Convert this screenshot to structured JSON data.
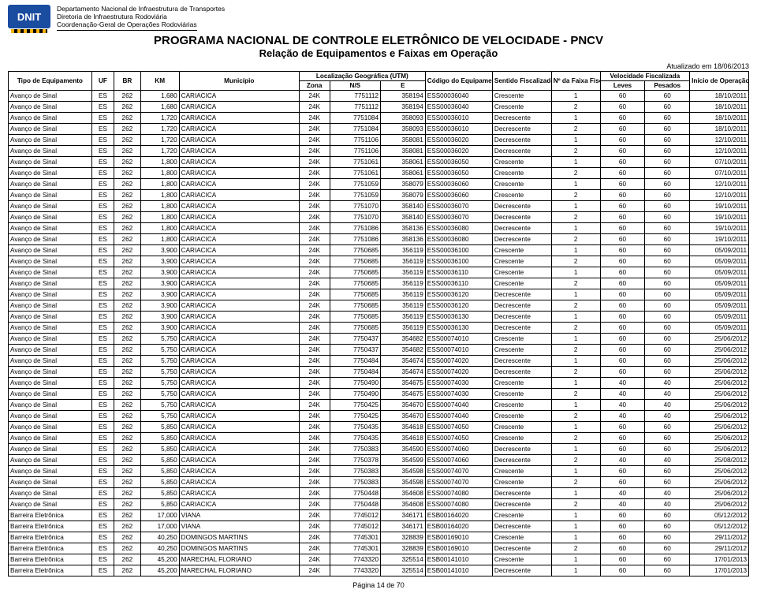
{
  "agency": {
    "logo_text": "DNIT",
    "line1": "Departamento Nacional de Infraestrutura de Transportes",
    "line2": "Diretoria de Infraestrutura Rodoviária",
    "line3": "Coordenação-Geral de Operações Rodoviárias"
  },
  "titles": {
    "main": "PROGRAMA NACIONAL DE CONTROLE ELETRÔNICO DE VELOCIDADE - PNCV",
    "sub": "Relação de Equipamentos e Faixas em Operação"
  },
  "updated": "Atualizado em 18/06/2013",
  "headers": {
    "tipo": "Tipo de Equipamento",
    "uf": "UF",
    "br": "BR",
    "km": "KM",
    "mun": "Município",
    "loc": "Localização Geográfica (UTM)",
    "zona": "Zona",
    "ns": "N/S",
    "e": "E",
    "cod": "Código do Equipamento",
    "sent": "Sentido Fiscalizado",
    "faixa": "Nº da Faixa Fiscalizada",
    "vel": "Velocidade Fiscalizada",
    "leves": "Leves",
    "pes": "Pesados",
    "ini": "Início de Operação"
  },
  "footer": "Página 14 de 70",
  "rows": [
    [
      "Avanço de Sinal",
      "ES",
      "262",
      "1,680",
      "CARIACICA",
      "24K",
      "7751112",
      "358194",
      "ESS00036040",
      "Crescente",
      "1",
      "60",
      "60",
      "18/10/2011"
    ],
    [
      "Avanço de Sinal",
      "ES",
      "262",
      "1,680",
      "CARIACICA",
      "24K",
      "7751112",
      "358194",
      "ESS00036040",
      "Crescente",
      "2",
      "60",
      "60",
      "18/10/2011"
    ],
    [
      "Avanço de Sinal",
      "ES",
      "262",
      "1,720",
      "CARIACICA",
      "24K",
      "7751084",
      "358093",
      "ESS00036010",
      "Decrescente",
      "1",
      "60",
      "60",
      "18/10/2011"
    ],
    [
      "Avanço de Sinal",
      "ES",
      "262",
      "1,720",
      "CARIACICA",
      "24K",
      "7751084",
      "358093",
      "ESS00036010",
      "Decrescente",
      "2",
      "60",
      "60",
      "18/10/2011"
    ],
    [
      "Avanço de Sinal",
      "ES",
      "262",
      "1,720",
      "CARIACICA",
      "24K",
      "7751106",
      "358081",
      "ESS00036020",
      "Decrescente",
      "1",
      "60",
      "60",
      "12/10/2011"
    ],
    [
      "Avanço de Sinal",
      "ES",
      "262",
      "1,720",
      "CARIACICA",
      "24K",
      "7751106",
      "358081",
      "ESS00036020",
      "Decrescente",
      "2",
      "60",
      "60",
      "12/10/2011"
    ],
    [
      "Avanço de Sinal",
      "ES",
      "262",
      "1,800",
      "CARIACICA",
      "24K",
      "7751061",
      "358061",
      "ESS00036050",
      "Crescente",
      "1",
      "60",
      "60",
      "07/10/2011"
    ],
    [
      "Avanço de Sinal",
      "ES",
      "262",
      "1,800",
      "CARIACICA",
      "24K",
      "7751061",
      "358061",
      "ESS00036050",
      "Crescente",
      "2",
      "60",
      "60",
      "07/10/2011"
    ],
    [
      "Avanço de Sinal",
      "ES",
      "262",
      "1,800",
      "CARIACICA",
      "24K",
      "7751059",
      "358079",
      "ESS00036060",
      "Crescente",
      "1",
      "60",
      "60",
      "12/10/2011"
    ],
    [
      "Avanço de Sinal",
      "ES",
      "262",
      "1,800",
      "CARIACICA",
      "24K",
      "7751059",
      "358079",
      "ESS00036060",
      "Crescente",
      "2",
      "60",
      "60",
      "12/10/2011"
    ],
    [
      "Avanço de Sinal",
      "ES",
      "262",
      "1,800",
      "CARIACICA",
      "24K",
      "7751070",
      "358140",
      "ESS00036070",
      "Decrescente",
      "1",
      "60",
      "60",
      "19/10/2011"
    ],
    [
      "Avanço de Sinal",
      "ES",
      "262",
      "1,800",
      "CARIACICA",
      "24K",
      "7751070",
      "358140",
      "ESS00036070",
      "Decrescente",
      "2",
      "60",
      "60",
      "19/10/2011"
    ],
    [
      "Avanço de Sinal",
      "ES",
      "262",
      "1,800",
      "CARIACICA",
      "24K",
      "7751086",
      "358136",
      "ESS00036080",
      "Decrescente",
      "1",
      "60",
      "60",
      "19/10/2011"
    ],
    [
      "Avanço de Sinal",
      "ES",
      "262",
      "1,800",
      "CARIACICA",
      "24K",
      "7751086",
      "358136",
      "ESS00036080",
      "Decrescente",
      "2",
      "60",
      "60",
      "19/10/2011"
    ],
    [
      "Avanço de Sinal",
      "ES",
      "262",
      "3,900",
      "CARIACICA",
      "24K",
      "7750685",
      "356119",
      "ESS00036100",
      "Crescente",
      "1",
      "60",
      "60",
      "05/09/2011"
    ],
    [
      "Avanço de Sinal",
      "ES",
      "262",
      "3,900",
      "CARIACICA",
      "24K",
      "7750685",
      "356119",
      "ESS00036100",
      "Crescente",
      "2",
      "60",
      "60",
      "05/09/2011"
    ],
    [
      "Avanço de Sinal",
      "ES",
      "262",
      "3,900",
      "CARIACICA",
      "24K",
      "7750685",
      "356119",
      "ESS00036110",
      "Crescente",
      "1",
      "60",
      "60",
      "05/09/2011"
    ],
    [
      "Avanço de Sinal",
      "ES",
      "262",
      "3,900",
      "CARIACICA",
      "24K",
      "7750685",
      "356119",
      "ESS00036110",
      "Crescente",
      "2",
      "60",
      "60",
      "05/09/2011"
    ],
    [
      "Avanço de Sinal",
      "ES",
      "262",
      "3,900",
      "CARIACICA",
      "24K",
      "7750685",
      "356119",
      "ESS00036120",
      "Decrescente",
      "1",
      "60",
      "60",
      "05/09/2011"
    ],
    [
      "Avanço de Sinal",
      "ES",
      "262",
      "3,900",
      "CARIACICA",
      "24K",
      "7750685",
      "356119",
      "ESS00036120",
      "Decrescente",
      "2",
      "60",
      "60",
      "05/09/2011"
    ],
    [
      "Avanço de Sinal",
      "ES",
      "262",
      "3,900",
      "CARIACICA",
      "24K",
      "7750685",
      "356119",
      "ESS00036130",
      "Decrescente",
      "1",
      "60",
      "60",
      "05/09/2011"
    ],
    [
      "Avanço de Sinal",
      "ES",
      "262",
      "3,900",
      "CARIACICA",
      "24K",
      "7750685",
      "356119",
      "ESS00036130",
      "Decrescente",
      "2",
      "60",
      "60",
      "05/09/2011"
    ],
    [
      "Avanço de Sinal",
      "ES",
      "262",
      "5,750",
      "CARIACICA",
      "24K",
      "7750437",
      "354682",
      "ESS00074010",
      "Crescente",
      "1",
      "60",
      "60",
      "25/06/2012"
    ],
    [
      "Avanço de Sinal",
      "ES",
      "262",
      "5,750",
      "CARIACICA",
      "24K",
      "7750437",
      "354682",
      "ESS00074010",
      "Crescente",
      "2",
      "60",
      "60",
      "25/06/2012"
    ],
    [
      "Avanço de Sinal",
      "ES",
      "262",
      "5,750",
      "CARIACICA",
      "24K",
      "7750484",
      "354674",
      "ESS00074020",
      "Decrescente",
      "1",
      "60",
      "60",
      "25/06/2012"
    ],
    [
      "Avanço de Sinal",
      "ES",
      "262",
      "5,750",
      "CARIACICA",
      "24K",
      "7750484",
      "354674",
      "ESS00074020",
      "Decrescente",
      "2",
      "60",
      "60",
      "25/06/2012"
    ],
    [
      "Avanço de Sinal",
      "ES",
      "262",
      "5,750",
      "CARIACICA",
      "24K",
      "7750490",
      "354675",
      "ESS00074030",
      "Crescente",
      "1",
      "40",
      "40",
      "25/06/2012"
    ],
    [
      "Avanço de Sinal",
      "ES",
      "262",
      "5,750",
      "CARIACICA",
      "24K",
      "7750490",
      "354675",
      "ESS00074030",
      "Crescente",
      "2",
      "40",
      "40",
      "25/06/2012"
    ],
    [
      "Avanço de Sinal",
      "ES",
      "262",
      "5,750",
      "CARIACICA",
      "24K",
      "7750425",
      "354670",
      "ESS00074040",
      "Crescente",
      "1",
      "40",
      "40",
      "25/06/2012"
    ],
    [
      "Avanço de Sinal",
      "ES",
      "262",
      "5,750",
      "CARIACICA",
      "24K",
      "7750425",
      "354670",
      "ESS00074040",
      "Crescente",
      "2",
      "40",
      "40",
      "25/06/2012"
    ],
    [
      "Avanço de Sinal",
      "ES",
      "262",
      "5,850",
      "CARIACICA",
      "24K",
      "7750435",
      "354618",
      "ESS00074050",
      "Crescente",
      "1",
      "60",
      "60",
      "25/06/2012"
    ],
    [
      "Avanço de Sinal",
      "ES",
      "262",
      "5,850",
      "CARIACICA",
      "24K",
      "7750435",
      "354618",
      "ESS00074050",
      "Crescente",
      "2",
      "60",
      "60",
      "25/06/2012"
    ],
    [
      "Avanço de Sinal",
      "ES",
      "262",
      "5,850",
      "CARIACICA",
      "24K",
      "7750383",
      "354590",
      "ESS00074060",
      "Decrescente",
      "1",
      "60",
      "60",
      "25/06/2012"
    ],
    [
      "Avanço de Sinal",
      "ES",
      "262",
      "5,850",
      "CARIACICA",
      "24K",
      "7750378",
      "354599",
      "ESS00074060",
      "Decrescente",
      "2",
      "40",
      "40",
      "25/08/2012"
    ],
    [
      "Avanço de Sinal",
      "ES",
      "262",
      "5,850",
      "CARIACICA",
      "24K",
      "7750383",
      "354598",
      "ESS00074070",
      "Crescente",
      "1",
      "60",
      "60",
      "25/06/2012"
    ],
    [
      "Avanço de Sinal",
      "ES",
      "262",
      "5,850",
      "CARIACICA",
      "24K",
      "7750383",
      "354598",
      "ESS00074070",
      "Crescente",
      "2",
      "60",
      "60",
      "25/06/2012"
    ],
    [
      "Avanço de Sinal",
      "ES",
      "262",
      "5,850",
      "CARIACICA",
      "24K",
      "7750448",
      "354608",
      "ESS00074080",
      "Decrescente",
      "1",
      "40",
      "40",
      "25/06/2012"
    ],
    [
      "Avanço de Sinal",
      "ES",
      "262",
      "5,850",
      "CARIACICA",
      "24K",
      "7750448",
      "354608",
      "ESS00074080",
      "Decrescente",
      "2",
      "40",
      "40",
      "25/06/2012"
    ],
    [
      "Barreira Eletrônica",
      "ES",
      "262",
      "17,000",
      "VIANA",
      "24K",
      "7745012",
      "346171",
      "ESB00164020",
      "Crescente",
      "1",
      "60",
      "60",
      "05/12/2012"
    ],
    [
      "Barreira Eletrônica",
      "ES",
      "262",
      "17,000",
      "VIANA",
      "24K",
      "7745012",
      "346171",
      "ESB00164020",
      "Decrescente",
      "1",
      "60",
      "60",
      "05/12/2012"
    ],
    [
      "Barreira Eletrônica",
      "ES",
      "262",
      "40,250",
      "DOMINGOS MARTINS",
      "24K",
      "7745301",
      "328839",
      "ESB00169010",
      "Crescente",
      "1",
      "60",
      "60",
      "29/11/2012"
    ],
    [
      "Barreira Eletrônica",
      "ES",
      "262",
      "40,250",
      "DOMINGOS MARTINS",
      "24K",
      "7745301",
      "328839",
      "ESB00169010",
      "Decrescente",
      "2",
      "60",
      "60",
      "29/11/2012"
    ],
    [
      "Barreira Eletrônica",
      "ES",
      "262",
      "45,200",
      "MARECHAL FLORIANO",
      "24K",
      "7743320",
      "325514",
      "ESB00141010",
      "Crescente",
      "1",
      "60",
      "60",
      "17/01/2013"
    ],
    [
      "Barreira Eletrônica",
      "ES",
      "262",
      "45,200",
      "MARECHAL FLORIANO",
      "24K",
      "7743320",
      "325514",
      "ESB00141010",
      "Decrescente",
      "1",
      "60",
      "60",
      "17/01/2013"
    ]
  ]
}
